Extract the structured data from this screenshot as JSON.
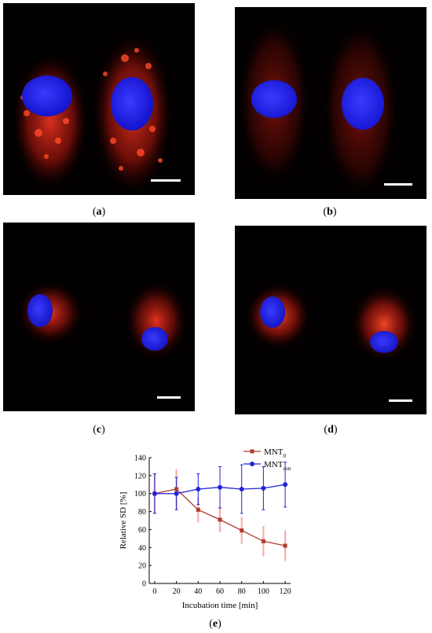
{
  "panels": [
    {
      "label": "a",
      "caption_open": "(",
      "caption_close": ")"
    },
    {
      "label": "b",
      "caption_open": "(",
      "caption_close": ")"
    },
    {
      "label": "c",
      "caption_open": "(",
      "caption_close": ")"
    },
    {
      "label": "d",
      "caption_open": "(",
      "caption_close": ")"
    },
    {
      "label": "e",
      "caption_open": "(",
      "caption_close": ")"
    }
  ],
  "colors": {
    "background": "#ffffff",
    "micrograph_bg": "#020000",
    "nucleus": "#1a1aff",
    "cytoplasm": "#ff2a1a",
    "scale_bar": "#ffffff",
    "mnt0": "#b03a2e",
    "mntcon": "#2323d8",
    "mnt0_error": "#f4a6a6",
    "mntcon_error": "#2323d8"
  },
  "chart_data": {
    "type": "line",
    "x": [
      0,
      20,
      40,
      60,
      80,
      100,
      120
    ],
    "xlabel": "Incubation time [min]",
    "ylabel": "Relative SD [%]",
    "xlim": [
      -5,
      125
    ],
    "ylim": [
      0,
      140
    ],
    "xticks": [
      0,
      20,
      40,
      60,
      80,
      100,
      120
    ],
    "yticks": [
      0,
      20,
      40,
      60,
      80,
      100,
      120,
      140
    ],
    "grid": false,
    "legend_position": "top-right",
    "series": [
      {
        "name": "MNT",
        "name_subscript": "0",
        "marker": "square",
        "values": [
          100,
          105,
          82,
          71,
          59,
          47,
          42
        ],
        "errors": [
          22,
          22,
          14,
          14,
          15,
          17,
          17
        ]
      },
      {
        "name": "MNT",
        "name_subscript": "con",
        "marker": "circle",
        "values": [
          100,
          100,
          105,
          107,
          105,
          106,
          110
        ],
        "errors": [
          22,
          18,
          17,
          23,
          27,
          24,
          25
        ]
      }
    ]
  }
}
